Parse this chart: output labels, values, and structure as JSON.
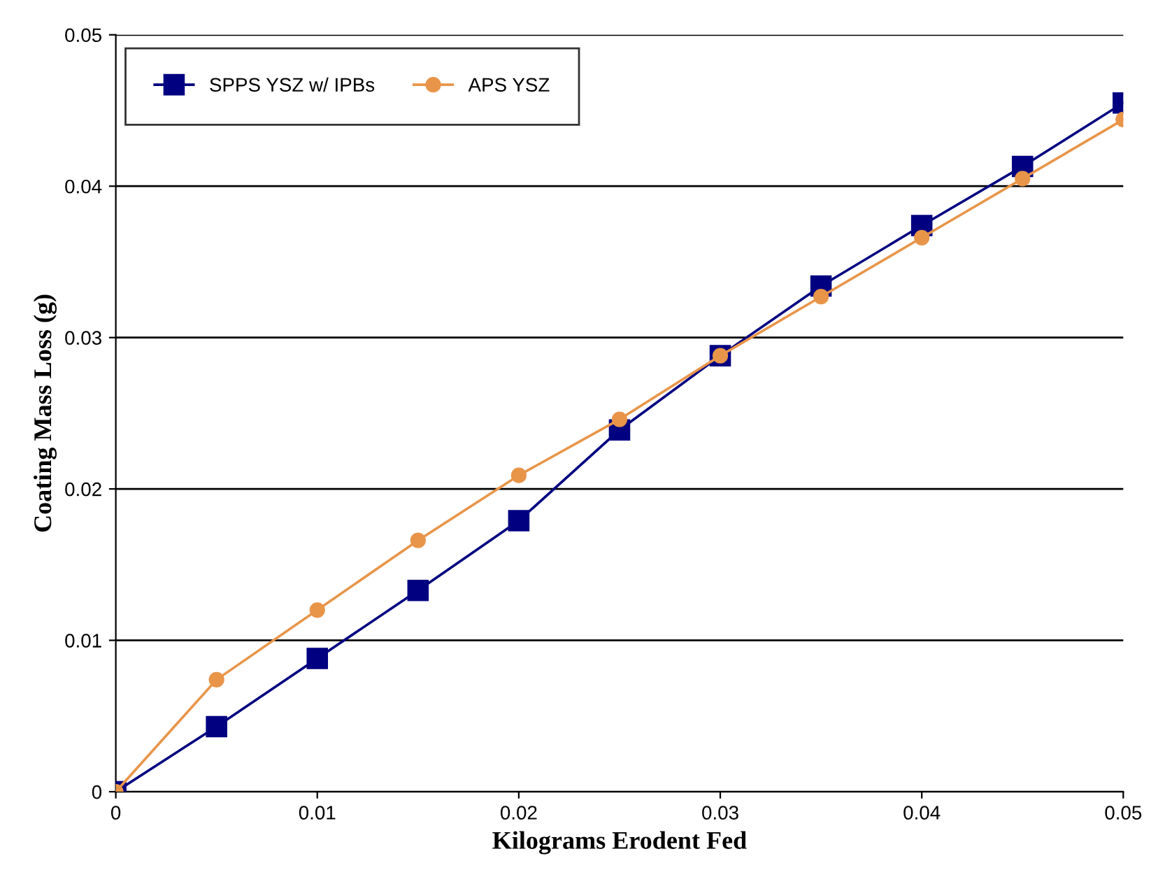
{
  "chart_data": {
    "type": "line",
    "xlabel": "Kilograms Erodent Fed",
    "ylabel": "Coating Mass Loss (g)",
    "x": [
      0,
      0.005,
      0.01,
      0.015,
      0.02,
      0.025,
      0.03,
      0.035,
      0.04,
      0.045,
      0.05
    ],
    "series": [
      {
        "name": "SPPS YSZ w/ IPBs",
        "color": "#000080",
        "marker": "square",
        "values": [
          0,
          0.0043,
          0.0088,
          0.0133,
          0.0179,
          0.0239,
          0.0288,
          0.0334,
          0.0374,
          0.0413,
          0.0455
        ]
      },
      {
        "name": "APS YSZ",
        "color": "#e8954a",
        "marker": "circle",
        "values": [
          0,
          0.0074,
          0.012,
          0.0166,
          0.0209,
          0.0246,
          0.0288,
          0.0327,
          0.0366,
          0.0405,
          0.0444
        ]
      }
    ],
    "xlim": [
      0,
      0.05
    ],
    "ylim": [
      0,
      0.05
    ],
    "xticks": [
      0,
      0.01,
      0.02,
      0.03,
      0.04,
      0.05
    ],
    "yticks": [
      0,
      0.01,
      0.02,
      0.03,
      0.04,
      0.05
    ],
    "grid": "y",
    "legend": "top",
    "line_style": "solid"
  }
}
